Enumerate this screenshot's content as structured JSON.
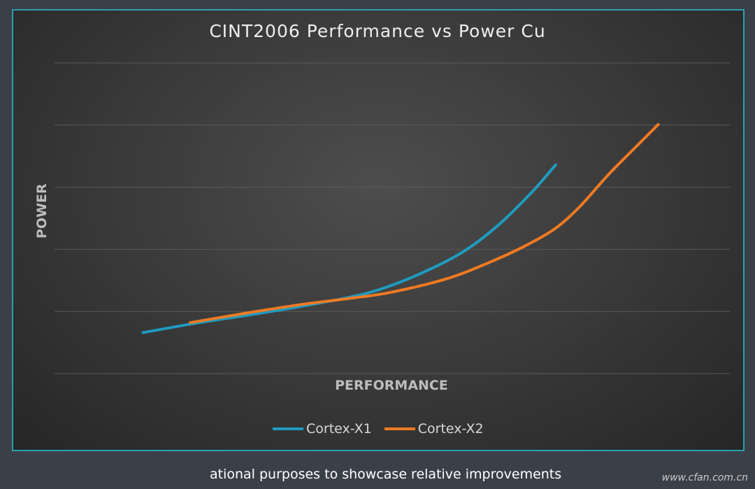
{
  "chart_data": {
    "type": "line",
    "title": "CINT2006 Performance vs Power Cu",
    "xlabel": "PERFORMANCE",
    "ylabel": "POWER",
    "xlim": [
      0,
      100
    ],
    "ylim": [
      0,
      5
    ],
    "grid": true,
    "legend_position": "bottom",
    "series": [
      {
        "name": "Cortex-X1",
        "color": "#1f9bc0",
        "x": [
          13.1,
          20.9,
          29.2,
          36.4,
          43.7,
          48.3,
          54.0,
          60.2,
          65.4,
          70.6,
          74.2
        ],
        "y": [
          0.66,
          0.81,
          0.95,
          1.08,
          1.23,
          1.36,
          1.6,
          1.94,
          2.36,
          2.91,
          3.36
        ]
      },
      {
        "name": "Cortex-X2",
        "color": "#f07a22",
        "x": [
          20.1,
          28.2,
          36.4,
          43.7,
          49.9,
          58.2,
          64.4,
          69.6,
          74.2,
          77.8,
          82.0,
          86.1,
          89.4
        ],
        "y": [
          0.82,
          0.97,
          1.11,
          1.21,
          1.31,
          1.53,
          1.79,
          2.05,
          2.34,
          2.69,
          3.2,
          3.65,
          4.01
        ]
      }
    ]
  },
  "footer_note": "ational purposes to showcase relative improvements",
  "watermark": "www.cfan.com.cn"
}
